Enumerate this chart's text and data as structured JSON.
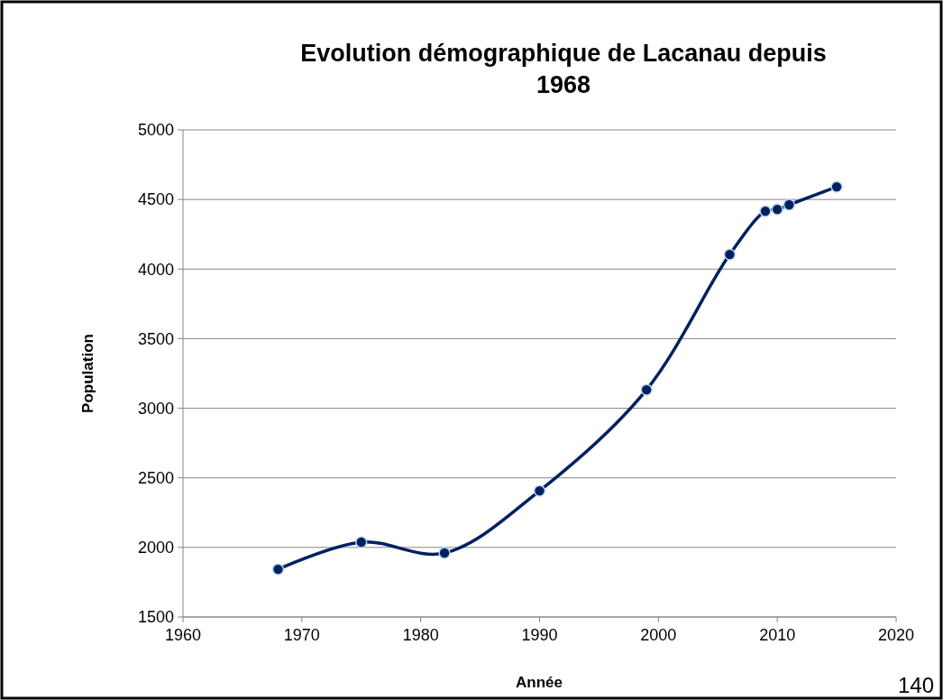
{
  "chart_data": {
    "type": "line",
    "title": "Evolution démographique de Lacanau depuis 1968",
    "xlabel": "Année",
    "ylabel": "Population",
    "x": [
      1968,
      1975,
      1982,
      1990,
      1999,
      2006,
      2009,
      2010,
      2011,
      2015
    ],
    "series": [
      {
        "color": "#002060",
        "values": [
          1843,
          2038,
          1960,
          2407,
          3133,
          4105,
          4416,
          4429,
          4462,
          4591
        ]
      }
    ],
    "xlim": [
      1960,
      2020
    ],
    "xticks": [
      1960,
      1970,
      1980,
      1990,
      2000,
      2010,
      2020
    ],
    "ylim": [
      1500,
      5000
    ],
    "yticks": [
      1500,
      2000,
      2500,
      3000,
      3500,
      4000,
      4500,
      5000
    ],
    "grid": "y",
    "marker": "circle",
    "annotations": [
      "140"
    ]
  }
}
